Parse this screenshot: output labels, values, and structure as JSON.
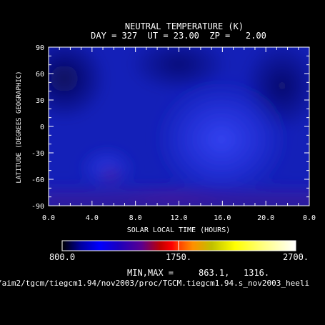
{
  "chart_data": {
    "type": "heatmap",
    "title": "NEUTRAL TEMPERATURE (K)",
    "subtitle": "DAY = 327  UT = 23.00  ZP =   2.00",
    "xlabel": "SOLAR LOCAL TIME (HOURS)",
    "ylabel": "LATITUDE (DEGREES GEOGRAPHIC)",
    "xlim": [
      0,
      24
    ],
    "ylim": [
      -90,
      90
    ],
    "xticks": [
      "0.0",
      "4.0",
      "8.0",
      "12.0",
      "16.0",
      "20.0",
      "0.0"
    ],
    "yticks": [
      "90",
      "60",
      "30",
      "0",
      "-30",
      "-60",
      "-90"
    ],
    "colorbar": {
      "min_label": "800.0",
      "mid_label": "1750.",
      "max_label": "2700.",
      "min": 800,
      "mid": 1750,
      "max": 2700
    },
    "minmax_label": "MIN,MAX =",
    "min_value": "863.1,",
    "max_value": "1316.",
    "file_path": "/aim2/tgcm/tiegcm1.94/nov2003/proc/TGCM.tiegcm1.94.s_nov2003_heeli",
    "colors": {
      "background": "#000000",
      "field_dark": "#0a0a5a",
      "field_mid": "#1a2ad8",
      "field_hot": "#3040f0",
      "south_polar": "#3a1aa0"
    }
  }
}
